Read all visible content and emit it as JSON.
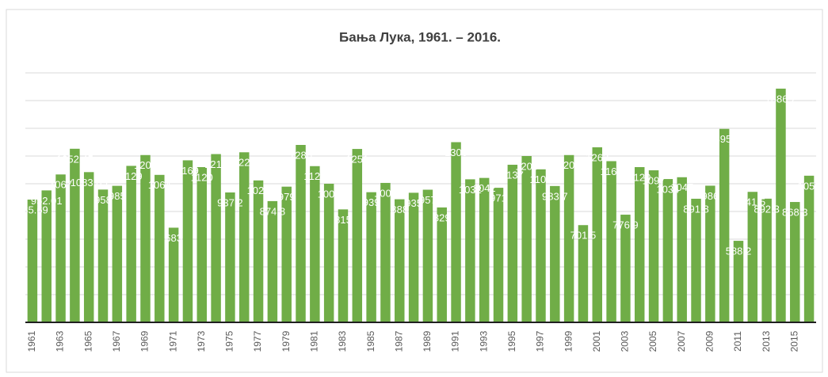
{
  "chart_data": {
    "type": "bar",
    "title": "Бања Лука, 1961. – 2016.",
    "categories": [
      "1961",
      null,
      "1963",
      null,
      "1965",
      null,
      "1967",
      null,
      "1969",
      null,
      "1971",
      null,
      "1973",
      null,
      "1975",
      null,
      "1977",
      null,
      "1979",
      null,
      "1981",
      null,
      "1983",
      null,
      "1985",
      null,
      "1987",
      null,
      "1989",
      null,
      "1991",
      null,
      "1993",
      null,
      "1995",
      null,
      "1997",
      null,
      "1999",
      null,
      "2001",
      null,
      "2003",
      null,
      "2005",
      null,
      "2007",
      null,
      "2009",
      null,
      "2011",
      null,
      "2013",
      null,
      "2015",
      null
    ],
    "values": [
      885.69,
      952.01,
      1067,
      1252.45,
      1083.85,
      958,
      985,
      1129,
      1207,
      1064,
      683,
      1169,
      1120,
      1214,
      937.2,
      1227,
      1024,
      874.8,
      979,
      1280,
      1127,
      1000,
      815,
      1251,
      939,
      1006,
      888,
      935,
      957,
      829,
      1300,
      1032,
      1042,
      971,
      1137,
      1200,
      1104,
      983.7,
      1207,
      701.5,
      1263,
      1163,
      776.9,
      1120,
      1097,
      1034,
      1047,
      891.8,
      986,
      1395.8,
      588.2,
      941.5,
      892.3,
      1686.2,
      868.3,
      1058
    ],
    "color": "#70ad47",
    "ylim": [
      0,
      1800
    ],
    "yticks": [
      0,
      200,
      400,
      600,
      800,
      1000,
      1200,
      1400,
      1600,
      1800
    ],
    "grid": true
  }
}
